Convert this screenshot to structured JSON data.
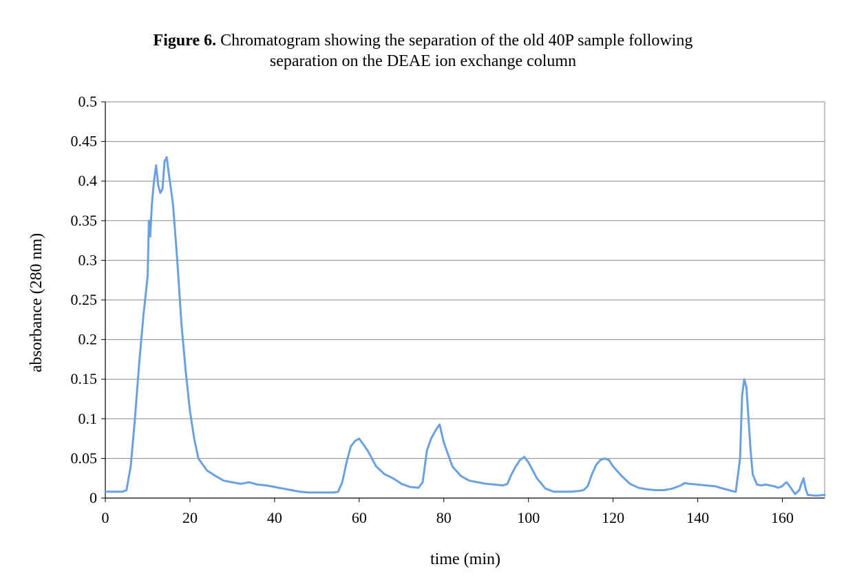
{
  "figure": {
    "label": "Figure 6.",
    "caption_line1": " Chromatogram showing the separation of the old 40P sample following",
    "caption_line2": "separation on the DEAE ion exchange column"
  },
  "chart_data": {
    "type": "line",
    "xlabel": "time (min)",
    "ylabel": "absorbance (280 nm)",
    "xlim": [
      0,
      170
    ],
    "ylim": [
      0,
      0.5
    ],
    "xticks": [
      0,
      20,
      40,
      60,
      80,
      100,
      120,
      140,
      160
    ],
    "yticks": [
      0,
      0.05,
      0.1,
      0.15,
      0.2,
      0.25,
      0.3,
      0.35,
      0.4,
      0.45,
      0.5
    ],
    "ytick_labels": [
      "0",
      "0.05",
      "0.1",
      "0.15",
      "0.2",
      "0.25",
      "0.3",
      "0.35",
      "0.4",
      "0.45",
      "0.5"
    ],
    "grid": "horizontal",
    "line_color": "#6a9fe0",
    "series": [
      {
        "x": [
          0,
          2,
          4,
          5,
          6,
          7,
          8,
          9,
          10,
          10.3,
          10.6,
          11,
          11.5,
          12,
          12.5,
          13,
          13.5,
          14,
          14.5,
          15,
          15.5,
          16,
          17,
          18,
          19,
          20,
          21,
          22,
          24,
          26,
          28,
          30,
          32,
          34,
          36,
          38,
          40,
          42,
          44,
          46,
          48,
          50,
          52,
          54,
          55,
          56,
          57,
          58,
          59,
          60,
          62,
          64,
          66,
          68,
          70,
          72,
          74,
          75,
          76,
          77,
          78,
          79,
          80,
          82,
          84,
          86,
          88,
          90,
          92,
          94,
          95,
          96,
          97,
          98,
          99,
          100,
          102,
          104,
          106,
          108,
          110,
          112,
          113,
          114,
          115,
          116,
          117,
          118,
          119,
          120,
          122,
          124,
          126,
          128,
          130,
          132,
          134,
          136,
          137,
          138,
          140,
          142,
          144,
          146,
          148,
          149,
          150,
          150.5,
          151,
          151.5,
          152,
          152.5,
          153,
          154,
          155,
          156,
          158,
          159,
          160,
          160.5,
          161,
          162,
          163,
          164,
          164.5,
          165,
          165.5,
          166,
          168,
          170
        ],
        "y": [
          0.008,
          0.008,
          0.008,
          0.01,
          0.04,
          0.1,
          0.17,
          0.23,
          0.28,
          0.35,
          0.33,
          0.37,
          0.4,
          0.42,
          0.395,
          0.385,
          0.39,
          0.425,
          0.43,
          0.41,
          0.39,
          0.37,
          0.3,
          0.22,
          0.16,
          0.11,
          0.075,
          0.05,
          0.035,
          0.028,
          0.022,
          0.02,
          0.018,
          0.02,
          0.017,
          0.016,
          0.014,
          0.012,
          0.01,
          0.008,
          0.007,
          0.007,
          0.007,
          0.007,
          0.008,
          0.02,
          0.045,
          0.065,
          0.072,
          0.075,
          0.06,
          0.04,
          0.03,
          0.025,
          0.018,
          0.014,
          0.013,
          0.02,
          0.06,
          0.075,
          0.085,
          0.093,
          0.07,
          0.04,
          0.028,
          0.022,
          0.02,
          0.018,
          0.017,
          0.016,
          0.018,
          0.03,
          0.04,
          0.048,
          0.052,
          0.045,
          0.025,
          0.012,
          0.008,
          0.008,
          0.008,
          0.009,
          0.01,
          0.015,
          0.03,
          0.042,
          0.048,
          0.05,
          0.048,
          0.04,
          0.028,
          0.018,
          0.013,
          0.011,
          0.01,
          0.01,
          0.012,
          0.016,
          0.019,
          0.018,
          0.017,
          0.016,
          0.015,
          0.012,
          0.009,
          0.008,
          0.05,
          0.13,
          0.15,
          0.14,
          0.1,
          0.06,
          0.03,
          0.017,
          0.016,
          0.017,
          0.015,
          0.013,
          0.015,
          0.018,
          0.02,
          0.013,
          0.005,
          0.01,
          0.018,
          0.025,
          0.012,
          0.004,
          0.003,
          0.004
        ]
      }
    ]
  }
}
